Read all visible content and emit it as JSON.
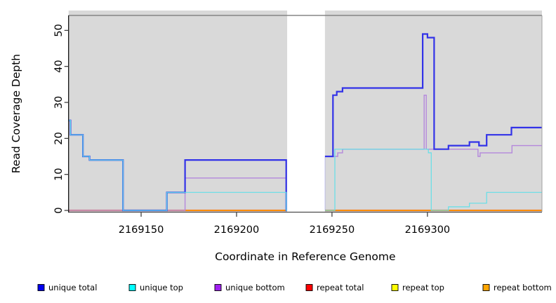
{
  "chart_data": {
    "type": "line",
    "subtype": "step-coverage",
    "title": "",
    "xlabel": "Coordinate in Reference Genome",
    "ylabel": "Read Coverage Depth",
    "xlim": [
      2169112,
      2169360
    ],
    "ylim": [
      0,
      54
    ],
    "xticks": [
      2169150,
      2169200,
      2169250,
      2169300
    ],
    "yticks": [
      0,
      10,
      20,
      30,
      40,
      50
    ],
    "grid": false,
    "plot_bg_color": "#d9d9d9",
    "masked_region": {
      "x1": 2169226.5,
      "x2": 2169246.3,
      "color": "#ffffff"
    },
    "legend_position": "bottom",
    "legend": [
      {
        "label": "unique total",
        "color": "#0000ee"
      },
      {
        "label": "unique top",
        "color": "#00ffff"
      },
      {
        "label": "unique bottom",
        "color": "#a020f0"
      },
      {
        "label": "repeat total",
        "color": "#ff0000"
      },
      {
        "label": "repeat top",
        "color": "#ffff00"
      },
      {
        "label": "repeat bottom",
        "color": "#ffa500"
      }
    ],
    "series": [
      {
        "name": "repeat top",
        "line_color": "#f2e640",
        "width": 1.2,
        "steps": [
          [
            2169112,
            0
          ],
          [
            2169360,
            0
          ]
        ]
      },
      {
        "name": "repeat total",
        "line_color": "#d45a70",
        "width": 2.2,
        "steps": [
          [
            2169112,
            0
          ],
          [
            2169360,
            0
          ]
        ]
      },
      {
        "name": "repeat bottom",
        "line_color": "#ff8c00",
        "width": 2.0,
        "steps": [
          [
            2169112,
            0
          ],
          [
            2169360,
            0
          ]
        ]
      },
      {
        "name": "unique bottom",
        "line_color": "#b488dc",
        "width": 1.4,
        "steps": [
          [
            2169112,
            0
          ],
          [
            2169173,
            9
          ],
          [
            2169226,
            0
          ],
          [
            2169246,
            15
          ],
          [
            2169253,
            16
          ],
          [
            2169255.5,
            17
          ],
          [
            2169298.3,
            32
          ],
          [
            2169299.4,
            17
          ],
          [
            2169326.5,
            15
          ],
          [
            2169327.6,
            16
          ],
          [
            2169344.3,
            18
          ],
          [
            2169360,
            18
          ]
        ]
      },
      {
        "name": "unique total",
        "line_color": "#3232e8",
        "width": 2.2,
        "steps": [
          [
            2169112,
            25
          ],
          [
            2169113,
            21
          ],
          [
            2169119.5,
            15
          ],
          [
            2169123,
            14
          ],
          [
            2169140.5,
            0
          ],
          [
            2169163.5,
            5
          ],
          [
            2169173,
            14
          ],
          [
            2169226,
            0
          ],
          [
            2169246,
            15
          ],
          [
            2169250.5,
            32
          ],
          [
            2169252.5,
            33
          ],
          [
            2169255.5,
            34
          ],
          [
            2169297.5,
            49
          ],
          [
            2169300,
            48
          ],
          [
            2169303.5,
            17
          ],
          [
            2169311,
            18
          ],
          [
            2169322,
            19
          ],
          [
            2169327,
            18
          ],
          [
            2169331,
            21
          ],
          [
            2169344,
            23
          ],
          [
            2169360,
            23
          ]
        ]
      },
      {
        "name": "unique top",
        "line_color": "#63dfe8",
        "width": 1.2,
        "steps": [
          [
            2169112,
            25
          ],
          [
            2169113,
            21
          ],
          [
            2169119.5,
            15
          ],
          [
            2169123,
            14
          ],
          [
            2169140.5,
            0
          ],
          [
            2169163.5,
            5
          ],
          [
            2169226,
            0
          ],
          [
            2169251.5,
            17
          ],
          [
            2169300.5,
            16
          ],
          [
            2169302,
            0
          ],
          [
            2169311,
            1
          ],
          [
            2169322,
            2
          ],
          [
            2169331,
            5
          ],
          [
            2169360,
            5
          ]
        ]
      }
    ]
  }
}
